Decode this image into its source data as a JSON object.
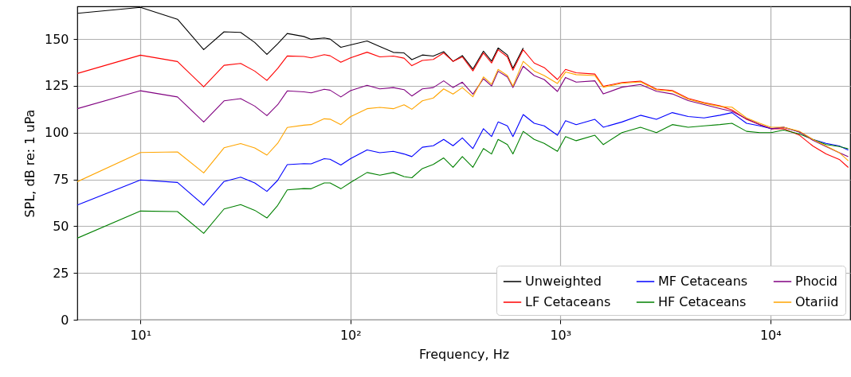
{
  "chart_data": {
    "type": "line",
    "xlabel": "Frequency, Hz",
    "ylabel": "SPL, dB re: 1 uPa",
    "log": "x",
    "grid": true,
    "legend": "bottom right",
    "xlim": [
      5,
      24000
    ],
    "ylim": [
      0,
      167.5
    ],
    "xticks": [
      {
        "value": 10,
        "label": "10¹"
      },
      {
        "value": 100,
        "label": "10²"
      },
      {
        "value": 1000,
        "label": "10³"
      },
      {
        "value": 10000,
        "label": "10⁴"
      }
    ],
    "yticks": [
      0,
      25,
      50,
      75,
      100,
      125,
      150
    ],
    "x": [
      5,
      10,
      15,
      20,
      25,
      30,
      35,
      40,
      45,
      50,
      60,
      65,
      75,
      80,
      90,
      100,
      120,
      138,
      160,
      180,
      196,
      220,
      248,
      278,
      308,
      341,
      383,
      430,
      470,
      505,
      559,
      594,
      665,
      750,
      837,
      968,
      1058,
      1189,
      1459,
      1601,
      1963,
      2406,
      2866,
      3412,
      4061,
      4834,
      5754,
      6561,
      7698,
      8908,
      10080,
      11570,
      13770,
      15920,
      18410,
      21290,
      23500
    ],
    "series": [
      {
        "name": "Unweighted",
        "color": "#000000",
        "values": [
          163.8,
          167,
          160.6,
          144.4,
          153.9,
          153.6,
          148.2,
          141.8,
          147.5,
          153,
          151.4,
          149.9,
          150.6,
          150,
          145.6,
          146.9,
          149,
          146,
          142.9,
          142.6,
          139,
          141.5,
          140.9,
          143.3,
          138.1,
          141.2,
          134,
          143.6,
          138.2,
          145.3,
          141.5,
          134.4,
          145.3,
          null,
          null,
          null,
          null,
          null,
          null,
          null,
          null,
          null,
          null,
          null,
          null,
          null,
          null,
          null,
          null,
          null,
          null,
          null,
          null,
          null,
          null,
          null,
          null
        ]
      },
      {
        "name": "LF Cetaceans",
        "color": "#ff0000",
        "values": [
          131.6,
          141.4,
          138,
          124.5,
          136,
          137,
          132.9,
          127.9,
          134.3,
          141,
          140.7,
          140,
          141.7,
          141.1,
          137.6,
          140,
          143,
          140.5,
          140.9,
          139.8,
          135.8,
          138.6,
          139.1,
          142.6,
          138.1,
          140.5,
          133,
          142.6,
          137.2,
          144.3,
          140.5,
          133.4,
          144.3,
          137.2,
          134.8,
          128.4,
          133.8,
          132,
          131.3,
          124.8,
          126.8,
          127.5,
          123.3,
          122.5,
          118.3,
          116,
          114.3,
          112.1,
          107.1,
          104.3,
          102.1,
          102.1,
          98.6,
          92.9,
          88.6,
          85.7,
          81.4
        ]
      },
      {
        "name": "MF Cetaceans",
        "color": "#0000ff",
        "values": [
          61.3,
          74.7,
          73.4,
          61.3,
          73.9,
          76.2,
          73.1,
          68.6,
          74.5,
          82.9,
          83.4,
          83.3,
          86.1,
          85.8,
          82.7,
          86.1,
          90.8,
          89.3,
          90,
          88.6,
          87.2,
          92.2,
          93,
          96.4,
          93,
          97.2,
          91.5,
          102.1,
          97.9,
          105.7,
          103.6,
          97.9,
          109.7,
          105,
          103.6,
          98.6,
          106.4,
          104.3,
          107.1,
          102.9,
          105.7,
          109.3,
          107.1,
          110.7,
          108.6,
          107.9,
          109.3,
          110.7,
          105,
          103.6,
          102.1,
          102.9,
          100.3,
          96.4,
          94.3,
          92.9,
          90.7
        ]
      },
      {
        "name": "HF Cetaceans",
        "color": "#008000",
        "values": [
          43.6,
          58.1,
          57.8,
          46.2,
          59.2,
          61.5,
          58.5,
          54.4,
          61.1,
          69.4,
          70.1,
          70,
          73.1,
          73.1,
          70,
          73.3,
          78.7,
          77.3,
          78.7,
          76.5,
          75.9,
          80.8,
          83,
          86.5,
          81.5,
          87.2,
          81.5,
          91.5,
          88.6,
          96.4,
          93.6,
          88.6,
          100.7,
          96.4,
          94.3,
          90,
          97.9,
          95.7,
          98.6,
          93.6,
          100,
          102.9,
          100,
          104.3,
          102.9,
          103.6,
          104.3,
          105,
          100.7,
          100,
          100,
          101.4,
          99.3,
          96.4,
          93.6,
          92.6,
          91.4
        ]
      },
      {
        "name": "Phocid",
        "color": "#800080",
        "values": [
          112.8,
          122.4,
          119.1,
          105.7,
          117,
          118.2,
          114.2,
          109.1,
          114.9,
          122.3,
          121.8,
          121.3,
          123.2,
          122.7,
          119.1,
          122.4,
          125.3,
          123.4,
          124.1,
          123,
          119.6,
          123.4,
          124.1,
          127.7,
          124.1,
          127,
          120.6,
          128.8,
          124.9,
          132.8,
          129.8,
          124.1,
          135.5,
          130.5,
          128.4,
          122,
          129.5,
          127,
          127.7,
          120.7,
          124.3,
          125.7,
          122.1,
          120.7,
          117.1,
          115,
          112.9,
          111.4,
          107.4,
          104.3,
          102.1,
          102.9,
          100.3,
          96,
          92.6,
          89.3,
          87.1
        ]
      },
      {
        "name": "Otariid",
        "color": "#ffa500",
        "values": [
          73.8,
          89.4,
          89.7,
          78.5,
          91.9,
          94.2,
          91.8,
          88,
          94.3,
          102.8,
          104,
          104.3,
          107.4,
          107.2,
          104.3,
          108.5,
          112.8,
          113.5,
          112.8,
          114.9,
          112.5,
          117,
          118.5,
          123.4,
          120.6,
          124.1,
          119.2,
          129.8,
          125.9,
          133.8,
          130.5,
          124.9,
          138.1,
          133,
          130.5,
          126.3,
          132.4,
          131,
          130.5,
          124.3,
          126.4,
          127.1,
          122.9,
          122.1,
          117.9,
          115.7,
          114,
          113.6,
          107.9,
          105,
          102.9,
          102.9,
          100.7,
          96.4,
          92.9,
          89.3,
          85
        ]
      }
    ]
  }
}
